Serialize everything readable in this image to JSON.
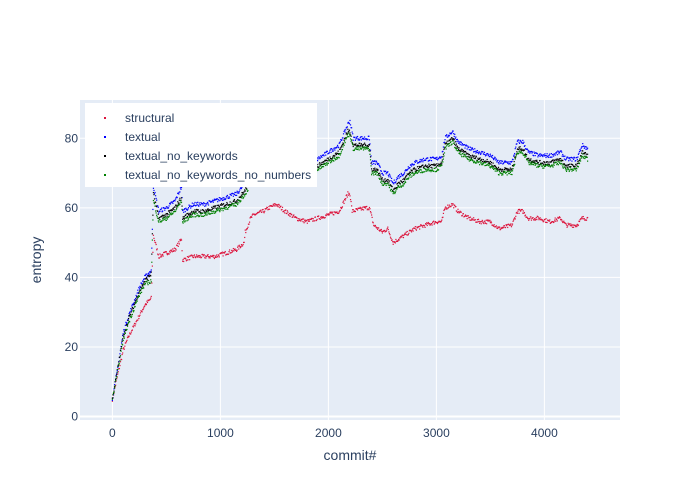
{
  "chart_data": {
    "type": "scatter",
    "title": "",
    "xlabel": "commit#",
    "ylabel": "entropy",
    "xlim": [
      -300,
      4700
    ],
    "ylim": [
      -1,
      91
    ],
    "x_ticks": [
      0,
      1000,
      2000,
      3000,
      4000
    ],
    "y_ticks": [
      0,
      20,
      40,
      60,
      80
    ],
    "x_tick_labels": [
      "0",
      "1000",
      "2000",
      "3000",
      "4000"
    ],
    "y_tick_labels": [
      "0",
      "20",
      "40",
      "60",
      "80"
    ],
    "grid": true,
    "legend_position": "top-left",
    "plot_background": "#e5ecf6",
    "series": [
      {
        "name": "structural",
        "color": "#dc143c",
        "trend": [
          [
            0,
            5
          ],
          [
            50,
            12
          ],
          [
            100,
            19
          ],
          [
            150,
            23
          ],
          [
            200,
            26
          ],
          [
            250,
            29
          ],
          [
            300,
            32
          ],
          [
            360,
            34
          ],
          [
            380,
            52
          ],
          [
            430,
            46
          ],
          [
            500,
            47
          ],
          [
            580,
            48
          ],
          [
            640,
            51
          ],
          [
            650,
            45
          ],
          [
            750,
            46
          ],
          [
            850,
            46
          ],
          [
            950,
            46
          ],
          [
            1050,
            47
          ],
          [
            1150,
            48
          ],
          [
            1220,
            50
          ],
          [
            1230,
            53
          ],
          [
            1280,
            57
          ],
          [
            1310,
            58
          ],
          [
            1400,
            59
          ],
          [
            1450,
            60
          ],
          [
            1520,
            61
          ],
          [
            1600,
            59
          ],
          [
            1700,
            57
          ],
          [
            1800,
            56
          ],
          [
            1900,
            57
          ],
          [
            2000,
            58
          ],
          [
            2100,
            59
          ],
          [
            2180,
            64
          ],
          [
            2200,
            64
          ],
          [
            2220,
            59
          ],
          [
            2350,
            60
          ],
          [
            2380,
            60
          ],
          [
            2420,
            55
          ],
          [
            2500,
            53
          ],
          [
            2550,
            54
          ],
          [
            2600,
            50
          ],
          [
            2700,
            52
          ],
          [
            2800,
            54
          ],
          [
            2900,
            55
          ],
          [
            3000,
            56
          ],
          [
            3050,
            56
          ],
          [
            3080,
            60
          ],
          [
            3150,
            61
          ],
          [
            3200,
            59
          ],
          [
            3300,
            57
          ],
          [
            3400,
            56
          ],
          [
            3500,
            56
          ],
          [
            3580,
            54
          ],
          [
            3700,
            55
          ],
          [
            3750,
            59
          ],
          [
            3800,
            59
          ],
          [
            3850,
            57
          ],
          [
            3950,
            57
          ],
          [
            4050,
            56
          ],
          [
            4150,
            57
          ],
          [
            4200,
            55
          ],
          [
            4300,
            55
          ],
          [
            4350,
            57
          ],
          [
            4400,
            57
          ]
        ]
      },
      {
        "name": "textual",
        "color": "#0000ff",
        "trend": [
          [
            0,
            5
          ],
          [
            50,
            14
          ],
          [
            100,
            24
          ],
          [
            150,
            29
          ],
          [
            200,
            33
          ],
          [
            250,
            37
          ],
          [
            300,
            40
          ],
          [
            360,
            42
          ],
          [
            380,
            66
          ],
          [
            430,
            59
          ],
          [
            500,
            60
          ],
          [
            580,
            62
          ],
          [
            640,
            66
          ],
          [
            650,
            59
          ],
          [
            750,
            61
          ],
          [
            850,
            61
          ],
          [
            950,
            62
          ],
          [
            1050,
            63
          ],
          [
            1150,
            64
          ],
          [
            1230,
            67
          ],
          [
            1300,
            71
          ],
          [
            1400,
            72
          ],
          [
            1500,
            72
          ],
          [
            1600,
            71
          ],
          [
            1700,
            73
          ],
          [
            1800,
            73
          ],
          [
            1900,
            74
          ],
          [
            2000,
            76
          ],
          [
            2100,
            78
          ],
          [
            2180,
            84
          ],
          [
            2200,
            85
          ],
          [
            2230,
            80
          ],
          [
            2300,
            80
          ],
          [
            2380,
            80
          ],
          [
            2400,
            73
          ],
          [
            2450,
            73
          ],
          [
            2500,
            70
          ],
          [
            2550,
            70
          ],
          [
            2600,
            67
          ],
          [
            2650,
            69
          ],
          [
            2700,
            70
          ],
          [
            2750,
            72
          ],
          [
            2800,
            73
          ],
          [
            2900,
            74
          ],
          [
            3000,
            74
          ],
          [
            3050,
            75
          ],
          [
            3080,
            80
          ],
          [
            3150,
            82
          ],
          [
            3200,
            79
          ],
          [
            3250,
            78
          ],
          [
            3300,
            77
          ],
          [
            3400,
            76
          ],
          [
            3500,
            75
          ],
          [
            3580,
            73
          ],
          [
            3700,
            73
          ],
          [
            3750,
            79
          ],
          [
            3800,
            79
          ],
          [
            3850,
            76
          ],
          [
            3950,
            75
          ],
          [
            4050,
            75
          ],
          [
            4150,
            76
          ],
          [
            4200,
            74
          ],
          [
            4300,
            74
          ],
          [
            4350,
            78
          ],
          [
            4400,
            77
          ]
        ]
      },
      {
        "name": "textual_no_keywords",
        "color": "#000000",
        "trend": [
          [
            0,
            5
          ],
          [
            50,
            14
          ],
          [
            100,
            23
          ],
          [
            150,
            28
          ],
          [
            200,
            32
          ],
          [
            250,
            36
          ],
          [
            300,
            39
          ],
          [
            360,
            41
          ],
          [
            380,
            64
          ],
          [
            430,
            57
          ],
          [
            500,
            58
          ],
          [
            580,
            60
          ],
          [
            640,
            63
          ],
          [
            650,
            57
          ],
          [
            750,
            59
          ],
          [
            850,
            59
          ],
          [
            950,
            60
          ],
          [
            1050,
            61
          ],
          [
            1150,
            62
          ],
          [
            1230,
            65
          ],
          [
            1300,
            69
          ],
          [
            1400,
            70
          ],
          [
            1500,
            70
          ],
          [
            1600,
            69
          ],
          [
            1700,
            71
          ],
          [
            1800,
            71
          ],
          [
            1900,
            72
          ],
          [
            2000,
            74
          ],
          [
            2100,
            76
          ],
          [
            2180,
            82
          ],
          [
            2200,
            82
          ],
          [
            2230,
            78
          ],
          [
            2300,
            78
          ],
          [
            2380,
            78
          ],
          [
            2400,
            71
          ],
          [
            2450,
            71
          ],
          [
            2500,
            68
          ],
          [
            2550,
            68
          ],
          [
            2600,
            65
          ],
          [
            2650,
            67
          ],
          [
            2700,
            68
          ],
          [
            2750,
            70
          ],
          [
            2800,
            71
          ],
          [
            2900,
            72
          ],
          [
            3000,
            72
          ],
          [
            3050,
            73
          ],
          [
            3080,
            78
          ],
          [
            3150,
            80
          ],
          [
            3200,
            77
          ],
          [
            3250,
            76
          ],
          [
            3300,
            75
          ],
          [
            3400,
            74
          ],
          [
            3500,
            73
          ],
          [
            3580,
            71
          ],
          [
            3700,
            71
          ],
          [
            3750,
            77
          ],
          [
            3800,
            77
          ],
          [
            3850,
            74
          ],
          [
            3950,
            73
          ],
          [
            4050,
            73
          ],
          [
            4150,
            74
          ],
          [
            4200,
            72
          ],
          [
            4300,
            72
          ],
          [
            4350,
            76
          ],
          [
            4400,
            75
          ]
        ]
      },
      {
        "name": "textual_no_keywords_no_numbers",
        "color": "#008000",
        "trend": [
          [
            0,
            5
          ],
          [
            50,
            13
          ],
          [
            100,
            22
          ],
          [
            150,
            27
          ],
          [
            200,
            31
          ],
          [
            250,
            35
          ],
          [
            300,
            38
          ],
          [
            360,
            39
          ],
          [
            380,
            62
          ],
          [
            430,
            56
          ],
          [
            500,
            57
          ],
          [
            580,
            59
          ],
          [
            640,
            62
          ],
          [
            650,
            56
          ],
          [
            750,
            58
          ],
          [
            850,
            58
          ],
          [
            950,
            59
          ],
          [
            1050,
            60
          ],
          [
            1150,
            61
          ],
          [
            1230,
            64
          ],
          [
            1300,
            68
          ],
          [
            1400,
            69
          ],
          [
            1500,
            69
          ],
          [
            1600,
            68
          ],
          [
            1700,
            70
          ],
          [
            1800,
            70
          ],
          [
            1900,
            71
          ],
          [
            2000,
            73
          ],
          [
            2100,
            75
          ],
          [
            2180,
            81
          ],
          [
            2200,
            81
          ],
          [
            2230,
            77
          ],
          [
            2300,
            77
          ],
          [
            2380,
            77
          ],
          [
            2400,
            70
          ],
          [
            2450,
            70
          ],
          [
            2500,
            67
          ],
          [
            2550,
            67
          ],
          [
            2600,
            64
          ],
          [
            2650,
            66
          ],
          [
            2700,
            67
          ],
          [
            2750,
            69
          ],
          [
            2800,
            70
          ],
          [
            2900,
            71
          ],
          [
            3000,
            71
          ],
          [
            3050,
            72
          ],
          [
            3080,
            77
          ],
          [
            3150,
            79
          ],
          [
            3200,
            76
          ],
          [
            3250,
            75
          ],
          [
            3300,
            74
          ],
          [
            3400,
            73
          ],
          [
            3500,
            72
          ],
          [
            3580,
            70
          ],
          [
            3700,
            70
          ],
          [
            3750,
            76
          ],
          [
            3800,
            76
          ],
          [
            3850,
            73
          ],
          [
            3950,
            72
          ],
          [
            4050,
            72
          ],
          [
            4150,
            73
          ],
          [
            4200,
            71
          ],
          [
            4300,
            71
          ],
          [
            4350,
            75
          ],
          [
            4400,
            74
          ]
        ]
      }
    ]
  }
}
